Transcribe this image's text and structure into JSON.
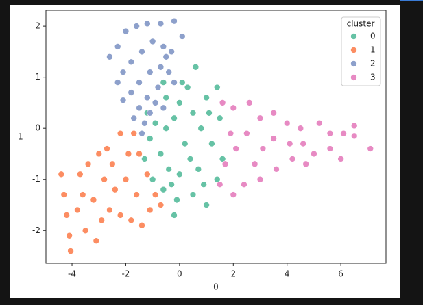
{
  "chart_data": {
    "type": "scatter",
    "x_label": "0",
    "y_label": "1",
    "legend_title": "cluster",
    "legend": "upper right",
    "xlim": [
      -4.97,
      7.68
    ],
    "ylim": [
      -2.64,
      2.31
    ],
    "xticks": [
      -4,
      -2,
      0,
      2,
      4,
      6
    ],
    "yticks": [
      -2,
      -1,
      0,
      1,
      2
    ],
    "series": [
      {
        "name": "0",
        "color": "#66c2a5",
        "x": [
          0,
          0.3,
          0.6,
          -0.5,
          -0.2,
          0.5,
          1,
          1.4,
          1.5,
          0.8,
          1.2,
          1.6,
          1.4,
          0.9,
          0.5,
          1,
          -0.1,
          -0.2,
          -0.6,
          -1,
          -1.3,
          -1.1,
          -0.7,
          -0.4,
          0,
          0.4,
          0.2,
          -0.5,
          -0.9,
          0.7,
          -0.3,
          0.1,
          -0.6,
          1.1,
          -1.2
        ],
        "values": [
          0.5,
          0.8,
          1.2,
          0.6,
          0.2,
          0.3,
          0.6,
          0.8,
          0.2,
          0,
          -0.3,
          -0.6,
          -1,
          -1.1,
          -1.3,
          -1.5,
          -1.4,
          -1.7,
          -1.2,
          -1,
          -0.6,
          -0.2,
          -0.5,
          -0.8,
          -0.9,
          -0.6,
          -0.3,
          0,
          0.1,
          -0.8,
          -1.1,
          0.9,
          0.9,
          0.3,
          0.3
        ]
      },
      {
        "name": "1",
        "color": "#fc8d62",
        "x": [
          -4.4,
          -4.3,
          -4.2,
          -4.1,
          -4.05,
          -3.8,
          -3.5,
          -3.1,
          -3.2,
          -3.4,
          -3,
          -2.7,
          -2.2,
          -1.7,
          -1.5,
          -1.2,
          -0.9,
          -1.1,
          -1.6,
          -2,
          -2.4,
          -2.8,
          -2.6,
          -2.2,
          -1.8,
          -2.9,
          -3.6,
          -1.4,
          -2.5,
          -1.9,
          -0.7,
          -3.7
        ],
        "values": [
          -0.9,
          -1.3,
          -1.7,
          -2.1,
          -2.4,
          -1.6,
          -2,
          -2.2,
          -1.4,
          -0.7,
          -0.5,
          -0.4,
          -0.1,
          -0.1,
          -0.5,
          -0.9,
          -1.3,
          -1.6,
          -1.3,
          -1,
          -1.2,
          -1,
          -1.6,
          -1.7,
          -1.8,
          -1.8,
          -1.3,
          -1.9,
          -0.7,
          -0.5,
          -1.5,
          -0.9
        ]
      },
      {
        "name": "2",
        "color": "#8da0cb",
        "x": [
          -2.6,
          -2.3,
          -2,
          -1.6,
          -1.2,
          -0.7,
          -0.2,
          0.1,
          -0.3,
          -0.6,
          -1,
          -1.4,
          -1.8,
          -2.1,
          -2.3,
          -2.1,
          -1.8,
          -1.5,
          -1.1,
          -0.7,
          -0.4,
          -0.2,
          -0.8,
          -1.2,
          -1.5,
          -1.3,
          -1.1,
          -0.9,
          -0.6,
          -1.4,
          -1.7,
          -0.5
        ],
        "values": [
          1.4,
          1.6,
          1.9,
          2,
          2.05,
          2.05,
          2.1,
          1.8,
          1.5,
          1.6,
          1.7,
          1.5,
          1.3,
          1.1,
          0.9,
          0.55,
          0.7,
          0.9,
          1.1,
          1.2,
          1.1,
          0.9,
          0.8,
          0.6,
          0.4,
          0.1,
          0.3,
          0.5,
          0.4,
          -0.1,
          0.2,
          1.4
        ]
      },
      {
        "name": "3",
        "color": "#e78ac3",
        "x": [
          1.6,
          2,
          2.6,
          3,
          3.5,
          4,
          4.5,
          5.2,
          5.6,
          6.1,
          6.5,
          7.1,
          6,
          5.6,
          5,
          4.7,
          4.2,
          3.6,
          3,
          2.4,
          2,
          1.5,
          1.7,
          2.1,
          2.5,
          3.1,
          3.5,
          4.1,
          2.8,
          1.9,
          6.5,
          4.6
        ],
        "values": [
          0.5,
          0.4,
          0.5,
          0.2,
          0.3,
          0.1,
          0,
          0.1,
          -0.1,
          -0.1,
          0.05,
          -0.4,
          -0.6,
          -0.4,
          -0.5,
          -0.7,
          -0.6,
          -0.8,
          -1,
          -1.1,
          -1.3,
          -1.1,
          -0.7,
          -0.4,
          -0.1,
          -0.4,
          -0.2,
          -0.3,
          -0.7,
          -0.1,
          -0.15,
          -0.3
        ]
      }
    ]
  }
}
